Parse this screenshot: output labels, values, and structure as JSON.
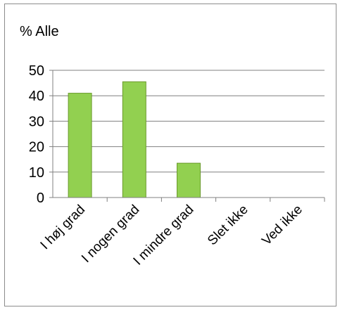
{
  "chart_data": {
    "type": "bar",
    "title": "% Alle",
    "categories": [
      "I høj grad",
      "I nogen grad",
      "I mindre grad",
      "Slet ikke",
      "Ved ikke"
    ],
    "values": [
      41,
      45.5,
      13.5,
      0,
      0
    ],
    "ylim": [
      0,
      50
    ],
    "yticks": [
      0,
      10,
      20,
      30,
      40,
      50
    ],
    "grid": true,
    "bar_color": "#92d050",
    "bar_edge_color": "#6a9a2c",
    "axis_color": "#808080",
    "grid_color": "#808080"
  }
}
